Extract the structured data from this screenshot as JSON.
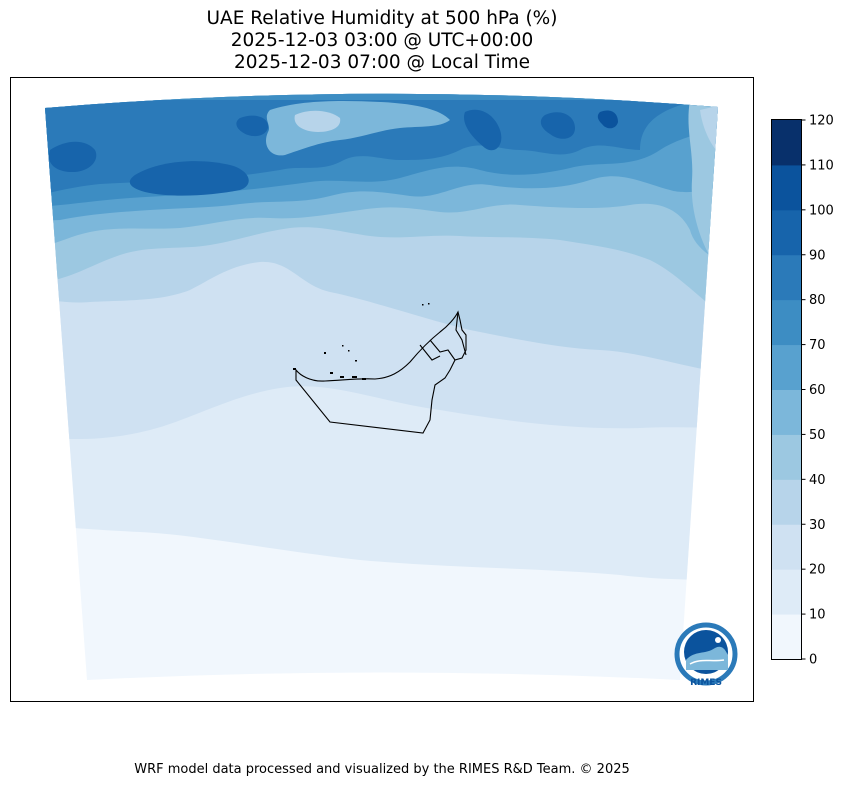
{
  "title": {
    "line1": "UAE Relative Humidity at 500 hPa (%)",
    "line2": "2025-12-03 03:00 @ UTC+00:00",
    "line3": "2025-12-03 07:00 @ Local Time"
  },
  "colorbar": {
    "levels": [
      0,
      10,
      20,
      30,
      40,
      50,
      60,
      70,
      80,
      90,
      100,
      110,
      120
    ],
    "colors": [
      "#f1f7fd",
      "#deebf7",
      "#cfe1f2",
      "#b7d4ea",
      "#9cc8e1",
      "#7cb7da",
      "#58a1cf",
      "#3d8dc3",
      "#2b7ab9",
      "#1764ab",
      "#0b539d",
      "#08306b"
    ]
  },
  "logo": {
    "text": "RIMES"
  },
  "footer": "WRF model data processed and visualized by the RIMES R&D Team. © 2025"
}
